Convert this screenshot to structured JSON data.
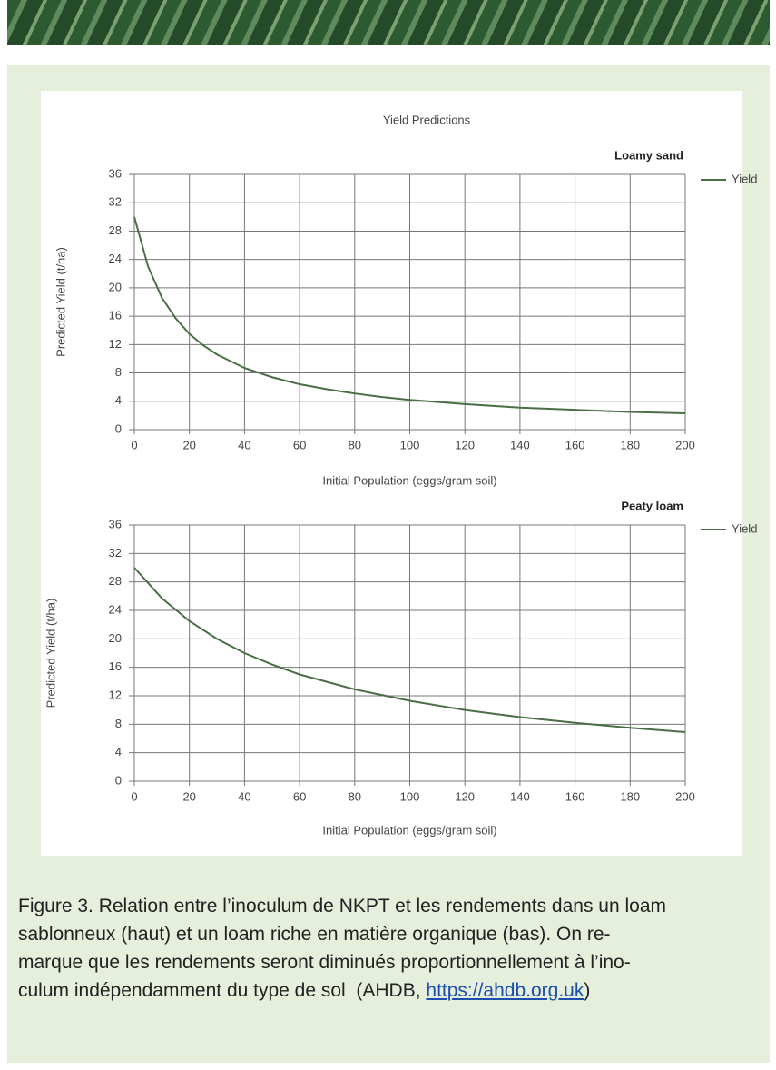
{
  "chart_data": [
    {
      "type": "line",
      "title": "Yield Predictions",
      "subtitle": "Loamy sand",
      "x_label": "Initial Population (eggs/gram soil)",
      "y_label": "Predicted Yield (t/ha)",
      "x": [
        0,
        5,
        10,
        15,
        20,
        25,
        30,
        40,
        50,
        60,
        70,
        80,
        90,
        100,
        120,
        140,
        160,
        180,
        200
      ],
      "series": [
        {
          "name": "Yield",
          "color": "#4b6e47",
          "values": [
            30,
            23.0,
            18.6,
            15.7,
            13.5,
            11.9,
            10.6,
            8.7,
            7.4,
            6.4,
            5.7,
            5.1,
            4.6,
            4.2,
            3.6,
            3.1,
            2.8,
            2.5,
            2.3
          ]
        }
      ],
      "xlim": [
        0,
        200
      ],
      "ylim": [
        0,
        36
      ],
      "xticks": [
        0,
        20,
        40,
        60,
        80,
        100,
        120,
        140,
        160,
        180,
        200
      ],
      "yticks": [
        0,
        4,
        8,
        12,
        16,
        20,
        24,
        28,
        32,
        36
      ],
      "grid": true,
      "legend": "right"
    },
    {
      "type": "line",
      "subtitle": "Peaty loam",
      "x_label": "Initial Population (eggs/gram soil)",
      "y_label": "Predicted Yield (t/ha)",
      "x": [
        0,
        10,
        20,
        30,
        40,
        50,
        60,
        80,
        100,
        120,
        140,
        160,
        180,
        200
      ],
      "series": [
        {
          "name": "Yield",
          "color": "#4b6e47",
          "values": [
            30,
            25.7,
            22.5,
            20.0,
            18.0,
            16.4,
            15.0,
            12.9,
            11.3,
            10.0,
            9.0,
            8.2,
            7.5,
            6.9
          ]
        }
      ],
      "xlim": [
        0,
        200
      ],
      "ylim": [
        0,
        36
      ],
      "xticks": [
        0,
        20,
        40,
        60,
        80,
        100,
        120,
        140,
        160,
        180,
        200
      ],
      "yticks": [
        0,
        4,
        8,
        12,
        16,
        20,
        24,
        28,
        32,
        36
      ],
      "grid": true,
      "legend": "right"
    }
  ],
  "caption": {
    "lines": [
      "Figure 3. Relation entre l’inoculum de NKPT et les rendements dans un loam",
      "sablonneux (haut) et un loam riche en matière organique (bas). On re-",
      "marque que les rendements seront diminués proportionnellement à l’ino-"
    ],
    "last_before": "culum indépendamment du type de sol  (AHDB, ",
    "link": "https://ahdb.org.uk",
    "last_after": ")"
  }
}
